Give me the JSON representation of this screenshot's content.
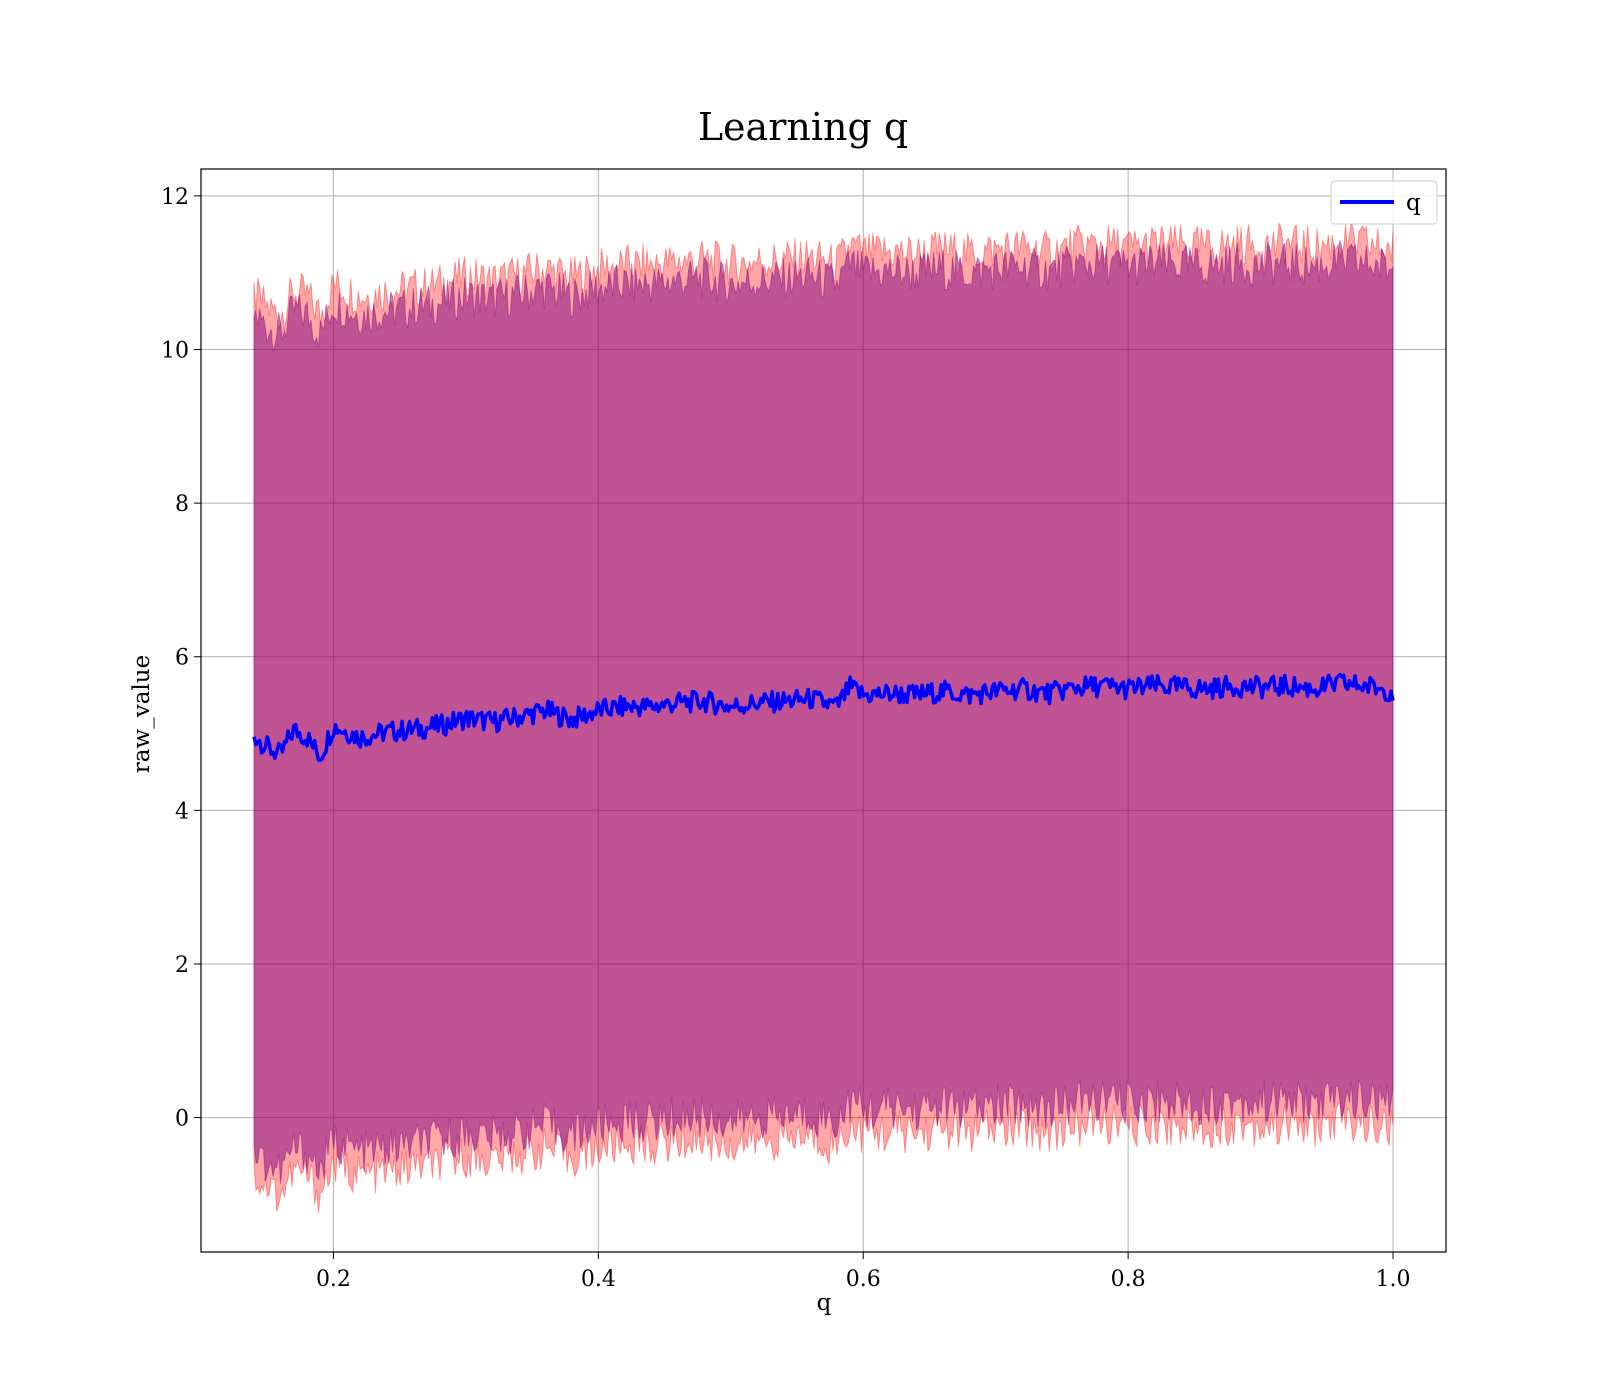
{
  "chart_data": {
    "type": "line",
    "title": "Learning q",
    "xlabel": "q",
    "ylabel": "raw_value",
    "xlim": [
      0.1,
      1.04
    ],
    "ylim": [
      -1.75,
      12.35
    ],
    "grid": true,
    "legend_position": "top-right",
    "x_ticks": [
      0.2,
      0.4,
      0.6,
      0.8,
      1.0
    ],
    "x_tick_labels": [
      "0.2",
      "0.4",
      "0.6",
      "0.8",
      "1.0"
    ],
    "y_ticks": [
      0,
      2,
      4,
      6,
      8,
      10,
      12
    ],
    "y_tick_labels": [
      "0",
      "2",
      "4",
      "6",
      "8",
      "10",
      "12"
    ],
    "colors": {
      "line": "#0000ff",
      "inner_band": "#800080",
      "outer_band": "#ff0000",
      "grid": "#b0b0b0",
      "frame": "#000000"
    },
    "series": [
      {
        "name": "q",
        "x": [
          0.14,
          0.15,
          0.16,
          0.17,
          0.18,
          0.19,
          0.2,
          0.22,
          0.24,
          0.26,
          0.28,
          0.3,
          0.32,
          0.34,
          0.36,
          0.38,
          0.4,
          0.42,
          0.44,
          0.46,
          0.48,
          0.5,
          0.52,
          0.54,
          0.56,
          0.58,
          0.59,
          0.6,
          0.62,
          0.64,
          0.66,
          0.68,
          0.7,
          0.72,
          0.74,
          0.76,
          0.78,
          0.8,
          0.82,
          0.84,
          0.86,
          0.88,
          0.9,
          0.92,
          0.94,
          0.96,
          0.98,
          1.0
        ],
        "values": [
          4.98,
          4.82,
          4.72,
          5.05,
          4.95,
          4.7,
          5.1,
          4.95,
          5.02,
          5.05,
          5.1,
          5.2,
          5.15,
          5.22,
          5.3,
          5.18,
          5.3,
          5.35,
          5.35,
          5.4,
          5.42,
          5.35,
          5.4,
          5.42,
          5.45,
          5.35,
          5.6,
          5.5,
          5.52,
          5.5,
          5.55,
          5.5,
          5.55,
          5.58,
          5.52,
          5.6,
          5.62,
          5.58,
          5.62,
          5.6,
          5.58,
          5.62,
          5.6,
          5.62,
          5.58,
          5.65,
          5.62,
          5.55
        ]
      }
    ],
    "band_inner": {
      "x": [
        0.14,
        0.15,
        0.16,
        0.17,
        0.18,
        0.19,
        0.2,
        0.22,
        0.24,
        0.26,
        0.28,
        0.3,
        0.32,
        0.34,
        0.36,
        0.38,
        0.4,
        0.42,
        0.44,
        0.46,
        0.48,
        0.5,
        0.52,
        0.54,
        0.56,
        0.58,
        0.59,
        0.6,
        0.62,
        0.64,
        0.66,
        0.68,
        0.7,
        0.72,
        0.74,
        0.76,
        0.78,
        0.8,
        0.82,
        0.84,
        0.86,
        0.88,
        0.9,
        0.92,
        0.94,
        0.96,
        0.98,
        1.0
      ],
      "upper": [
        10.45,
        10.3,
        10.2,
        10.5,
        10.45,
        10.2,
        10.6,
        10.45,
        10.5,
        10.55,
        10.6,
        10.7,
        10.65,
        10.72,
        10.8,
        10.68,
        10.8,
        10.85,
        10.85,
        10.9,
        10.92,
        10.85,
        10.9,
        10.92,
        10.95,
        10.85,
        11.1,
        11.0,
        11.02,
        11.0,
        11.05,
        11.0,
        11.05,
        11.08,
        11.02,
        11.1,
        11.12,
        11.08,
        11.12,
        11.1,
        11.08,
        11.12,
        11.1,
        11.12,
        11.08,
        11.15,
        11.12,
        11.05
      ],
      "lower": [
        -0.45,
        -0.6,
        -0.7,
        -0.4,
        -0.45,
        -0.7,
        -0.3,
        -0.45,
        -0.4,
        -0.35,
        -0.3,
        -0.2,
        -0.25,
        -0.18,
        -0.1,
        -0.22,
        -0.1,
        -0.05,
        -0.05,
        0.0,
        0.02,
        -0.05,
        0.0,
        0.02,
        0.05,
        -0.05,
        0.2,
        0.1,
        0.12,
        0.1,
        0.15,
        0.1,
        0.15,
        0.18,
        0.12,
        0.2,
        0.22,
        0.18,
        0.22,
        0.2,
        0.18,
        0.22,
        0.2,
        0.22,
        0.18,
        0.25,
        0.22,
        0.15
      ]
    },
    "band_outer": {
      "x": [
        0.14,
        0.15,
        0.16,
        0.17,
        0.18,
        0.19,
        0.2,
        0.22,
        0.24,
        0.26,
        0.28,
        0.3,
        0.32,
        0.34,
        0.36,
        0.38,
        0.4,
        0.42,
        0.44,
        0.46,
        0.48,
        0.5,
        0.52,
        0.54,
        0.56,
        0.58,
        0.59,
        0.6,
        0.62,
        0.64,
        0.66,
        0.68,
        0.7,
        0.72,
        0.74,
        0.76,
        0.78,
        0.8,
        0.82,
        0.84,
        0.86,
        0.88,
        0.9,
        0.92,
        0.94,
        0.96,
        0.98,
        1.0
      ],
      "upper": [
        10.7,
        10.55,
        10.45,
        10.75,
        10.7,
        10.45,
        10.85,
        10.7,
        10.75,
        10.8,
        10.85,
        10.95,
        10.9,
        10.97,
        11.05,
        10.93,
        11.05,
        11.1,
        11.1,
        11.15,
        11.17,
        11.1,
        11.15,
        11.17,
        11.2,
        11.1,
        11.35,
        11.25,
        11.27,
        11.25,
        11.3,
        11.25,
        11.3,
        11.33,
        11.27,
        11.35,
        11.37,
        11.33,
        11.37,
        11.35,
        11.33,
        11.37,
        11.35,
        11.37,
        11.33,
        11.4,
        11.37,
        11.3
      ],
      "lower": [
        -0.75,
        -0.9,
        -1.0,
        -0.7,
        -0.75,
        -1.0,
        -0.6,
        -0.75,
        -0.7,
        -0.65,
        -0.6,
        -0.5,
        -0.55,
        -0.48,
        -0.4,
        -0.52,
        -0.4,
        -0.35,
        -0.35,
        -0.3,
        -0.28,
        -0.35,
        -0.3,
        -0.28,
        -0.25,
        -0.35,
        -0.1,
        -0.2,
        -0.18,
        -0.2,
        -0.15,
        -0.2,
        -0.15,
        -0.12,
        -0.18,
        -0.1,
        -0.08,
        -0.12,
        -0.08,
        -0.1,
        -0.12,
        -0.08,
        -0.1,
        -0.08,
        -0.12,
        -0.05,
        -0.08,
        -0.15
      ]
    }
  }
}
